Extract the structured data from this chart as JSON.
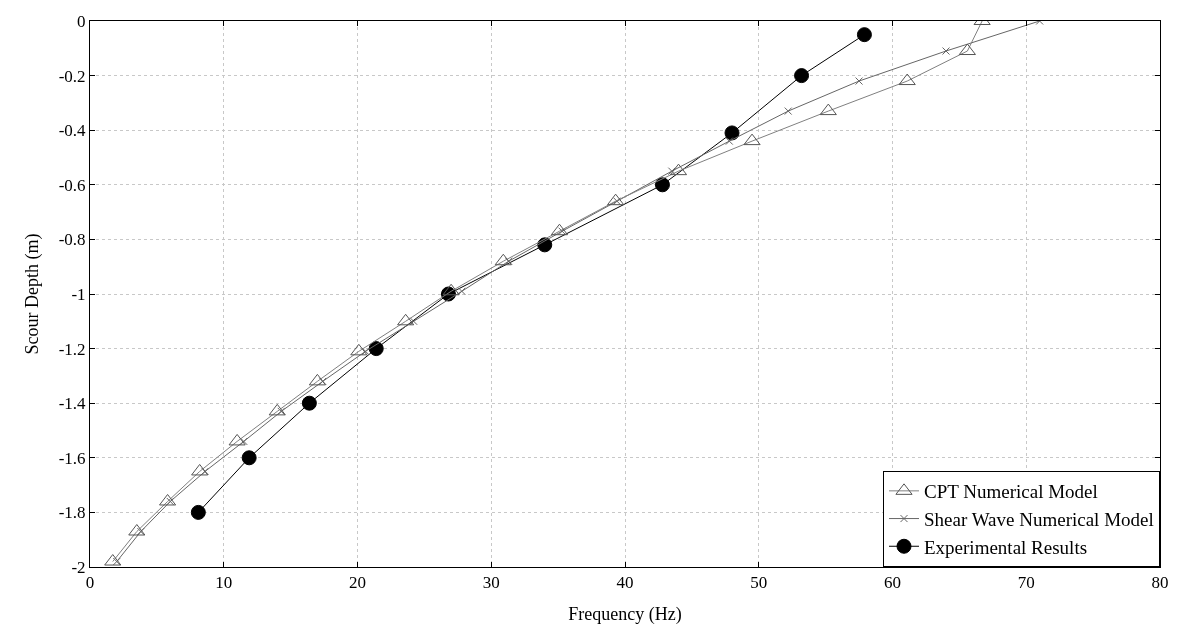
{
  "chart_data": {
    "type": "line",
    "xlabel": "Frequency (Hz)",
    "ylabel": "Scour Depth (m)",
    "xlim": [
      0,
      80
    ],
    "xticks": [
      0,
      10,
      20,
      30,
      40,
      50,
      60,
      70,
      80
    ],
    "ylim": [
      -2,
      0
    ],
    "yticks": [
      0,
      -0.2,
      -0.4,
      -0.6,
      -0.8,
      -1,
      -1.2,
      -1.4,
      -1.6,
      -1.8,
      -2
    ],
    "grid": true,
    "legend": "bottom right",
    "series": [
      {
        "name": "CPT Numerical Model",
        "color": "#808080",
        "marker": "triangle",
        "x": [
          66.7,
          65.6,
          61.1,
          55.2,
          49.5,
          44,
          39.3,
          35.1,
          30.9,
          27,
          23.6,
          20.1,
          17,
          14,
          11,
          8.2,
          5.8,
          3.5,
          1.7
        ],
        "values": [
          0,
          -0.11,
          -0.22,
          -0.33,
          -0.44,
          -0.55,
          -0.66,
          -0.77,
          -0.88,
          -0.99,
          -1.1,
          -1.21,
          -1.32,
          -1.43,
          -1.54,
          -1.65,
          -1.76,
          -1.87,
          -1.98
        ]
      },
      {
        "name": "Shear Wave Numerical Model",
        "color": "#666666",
        "marker": "cross",
        "x": [
          71,
          64,
          57.5,
          52.2,
          47.8,
          43.5,
          39.4,
          35.3,
          31.3,
          27.8,
          24.2,
          20.6,
          17.4,
          14.3,
          11.5,
          8.6,
          6,
          3.8,
          2
        ],
        "values": [
          0,
          -0.11,
          -0.22,
          -0.33,
          -0.44,
          -0.55,
          -0.66,
          -0.77,
          -0.88,
          -0.99,
          -1.1,
          -1.21,
          -1.32,
          -1.43,
          -1.54,
          -1.65,
          -1.76,
          -1.87,
          -1.98
        ]
      },
      {
        "name": "Experimental Results",
        "color": "#000000",
        "marker": "circle",
        "x": [
          57.9,
          53.2,
          48,
          42.8,
          34,
          26.8,
          21.4,
          16.4,
          11.9,
          8.1
        ],
        "values": [
          -0.05,
          -0.2,
          -0.41,
          -0.6,
          -0.82,
          -1.0,
          -1.2,
          -1.4,
          -1.6,
          -1.8
        ]
      }
    ]
  }
}
